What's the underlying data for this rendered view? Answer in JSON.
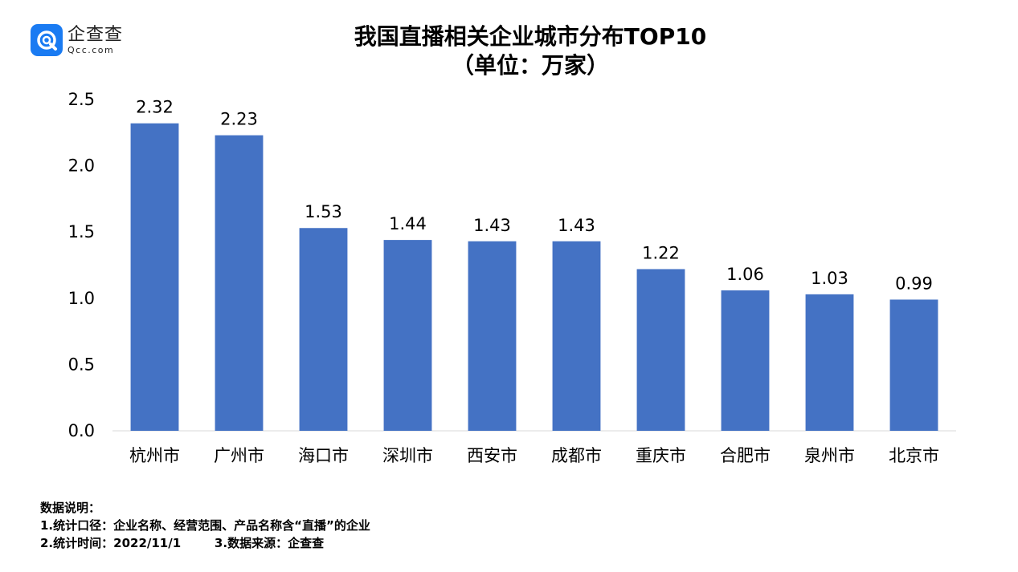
{
  "logo": {
    "name_cn": "企查查",
    "name_en": "Qcc.com"
  },
  "title": {
    "line1": "我国直播相关企业城市分布TOP10",
    "line2": "（单位：万家）"
  },
  "colors": {
    "bar": "#4472c4",
    "brand": "#1a7bf2"
  },
  "chart_data": {
    "type": "bar",
    "title": "我国直播相关企业城市分布TOP10（单位：万家）",
    "categories": [
      "杭州市",
      "广州市",
      "海口市",
      "深圳市",
      "西安市",
      "成都市",
      "重庆市",
      "合肥市",
      "泉州市",
      "北京市"
    ],
    "values": [
      2.32,
      2.23,
      1.53,
      1.44,
      1.43,
      1.43,
      1.22,
      1.06,
      1.03,
      0.99
    ],
    "value_labels": [
      "2.32",
      "2.23",
      "1.53",
      "1.44",
      "1.43",
      "1.43",
      "1.22",
      "1.06",
      "1.03",
      "0.99"
    ],
    "y_ticks": [
      "0.0",
      "0.5",
      "1.0",
      "1.5",
      "2.0",
      "2.5"
    ],
    "ylim": [
      0,
      2.5
    ],
    "xlabel": "",
    "ylabel": "",
    "grid": false
  },
  "notes": {
    "heading": "数据说明：",
    "line1": "1.统计口径：企业名称、经营范围、产品名称含“直播”的企业",
    "line2": "2.统计时间：2022/11/1        3.数据来源：企查查"
  }
}
